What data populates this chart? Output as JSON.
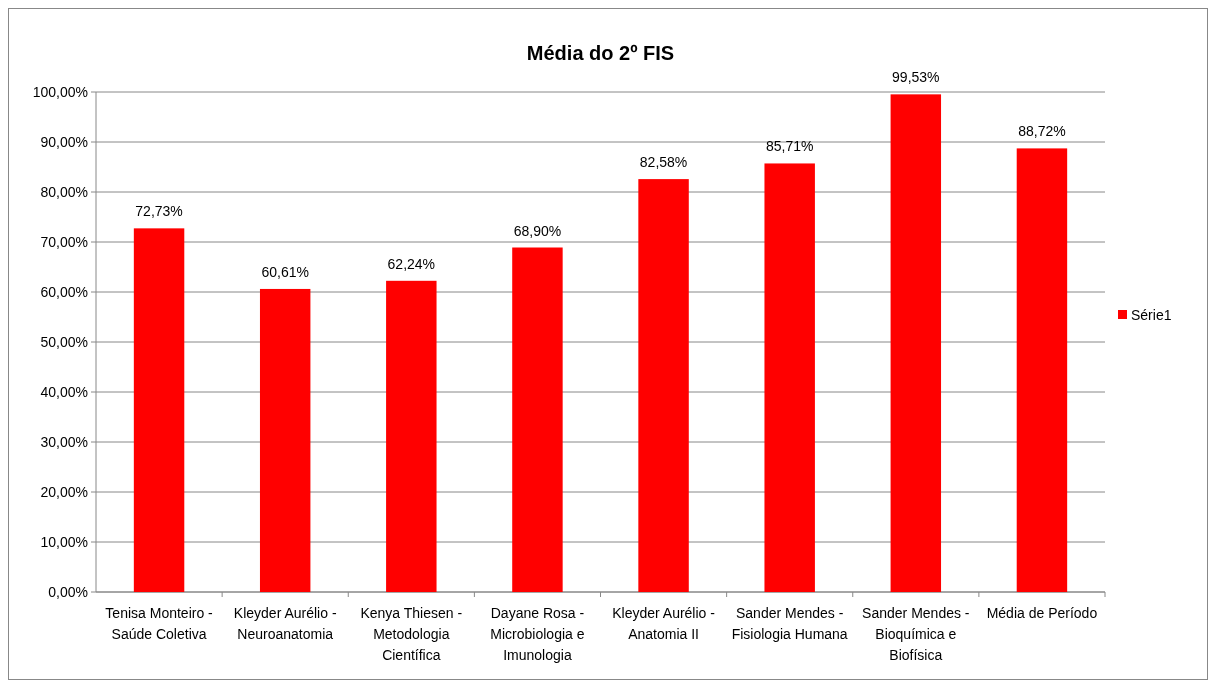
{
  "chart_data": {
    "type": "bar",
    "title": "Média do 2º FIS",
    "categories": [
      "Tenisa Monteiro - Saúde Coletiva",
      "Kleyder Aurélio - Neuroanatomia",
      "Kenya Thiesen - Metodologia Científica",
      "Dayane Rosa - Microbiologia e Imunologia",
      "Kleyder Aurélio - Anatomia II",
      "Sander Mendes - Fisiologia Humana",
      "Sander Mendes - Bioquímica e Biofísica",
      "Média de Período"
    ],
    "series": [
      {
        "name": "Série1",
        "color": "#ff0000",
        "values": [
          72.73,
          60.61,
          62.24,
          68.9,
          82.58,
          85.71,
          99.53,
          88.72
        ],
        "value_labels": [
          "72,73%",
          "60,61%",
          "62,24%",
          "68,90%",
          "82,58%",
          "85,71%",
          "99,53%",
          "88,72%"
        ]
      }
    ],
    "ylim": [
      0,
      100
    ],
    "yticks": [
      {
        "value": 0,
        "label": "0,00%"
      },
      {
        "value": 10,
        "label": "10,00%"
      },
      {
        "value": 20,
        "label": "20,00%"
      },
      {
        "value": 30,
        "label": "30,00%"
      },
      {
        "value": 40,
        "label": "40,00%"
      },
      {
        "value": 50,
        "label": "50,00%"
      },
      {
        "value": 60,
        "label": "60,00%"
      },
      {
        "value": 70,
        "label": "70,00%"
      },
      {
        "value": 80,
        "label": "80,00%"
      },
      {
        "value": 90,
        "label": "90,00%"
      },
      {
        "value": 100,
        "label": "100,00%"
      }
    ],
    "grid": "y",
    "legend": "right"
  }
}
